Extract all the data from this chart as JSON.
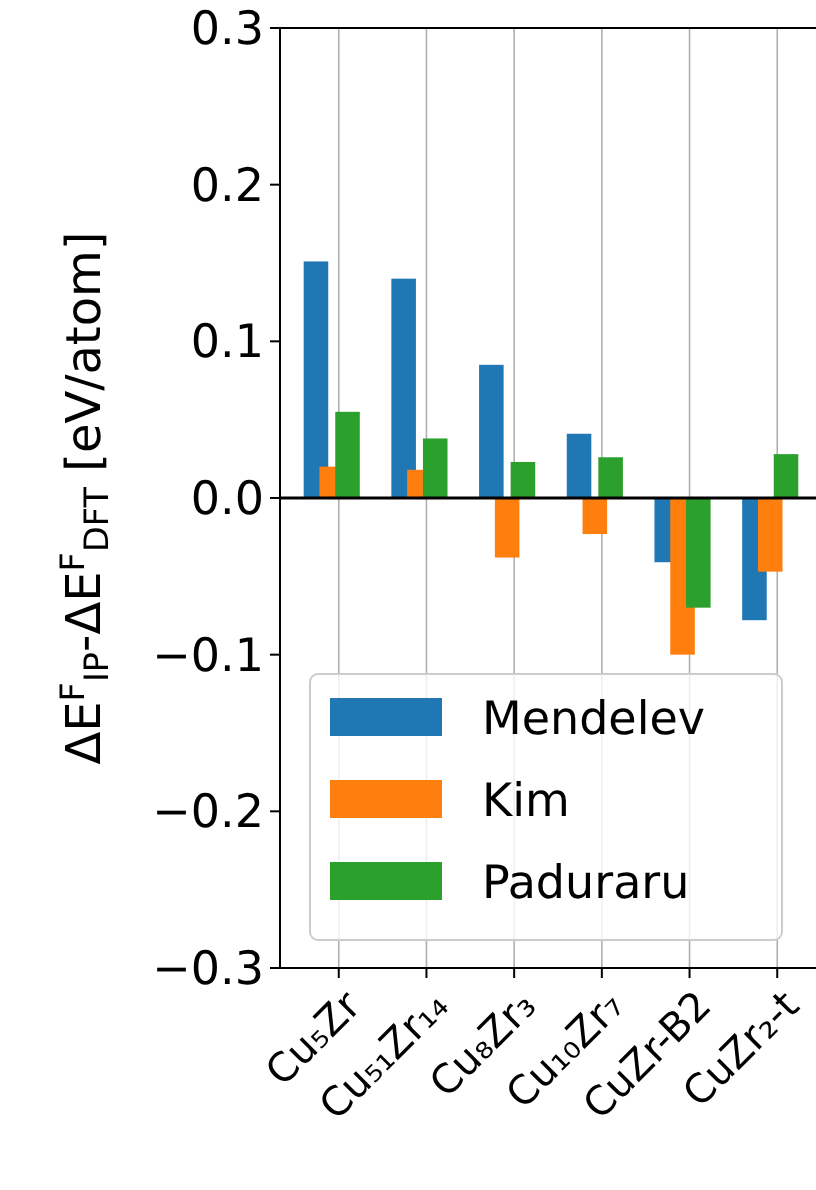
{
  "chart_data": {
    "type": "bar",
    "ylabel": "ΔE$^{F}$$_{IP}$-ΔE$^{F}$$_{DFT}$ [eV/atom]",
    "categories": [
      "Cu₅Zr",
      "Cu₅₁Zr₁₄",
      "Cu₈Zr₃",
      "Cu₁₀Zr₇",
      "CuZr-B2",
      "CuZr₂-t"
    ],
    "series": [
      {
        "name": "Mendelev",
        "color": "#1f77b4",
        "values": [
          0.151,
          0.14,
          0.085,
          0.041,
          -0.041,
          -0.078
        ]
      },
      {
        "name": "Kim",
        "color": "#ff7f0e",
        "values": [
          0.02,
          0.018,
          -0.038,
          -0.023,
          -0.1,
          -0.047
        ]
      },
      {
        "name": "Paduraru",
        "color": "#2ca02c",
        "values": [
          0.055,
          0.038,
          0.023,
          0.026,
          -0.07,
          0.028
        ]
      }
    ],
    "ylim": [
      -0.3,
      0.3
    ],
    "yticks": [
      {
        "value": -0.3,
        "label": "−0.3"
      },
      {
        "value": -0.2,
        "label": "−0.2"
      },
      {
        "value": -0.1,
        "label": "−0.1"
      },
      {
        "value": 0,
        "label": "0.0"
      },
      {
        "value": 0.1,
        "label": "0.1"
      },
      {
        "value": 0.2,
        "label": "0.2"
      },
      {
        "value": 0.3,
        "label": "0.3"
      }
    ],
    "ref_lines": [
      {
        "axis": "y",
        "value": 0,
        "color": "#000000"
      }
    ],
    "grid": "x",
    "legend": "bottom left"
  }
}
